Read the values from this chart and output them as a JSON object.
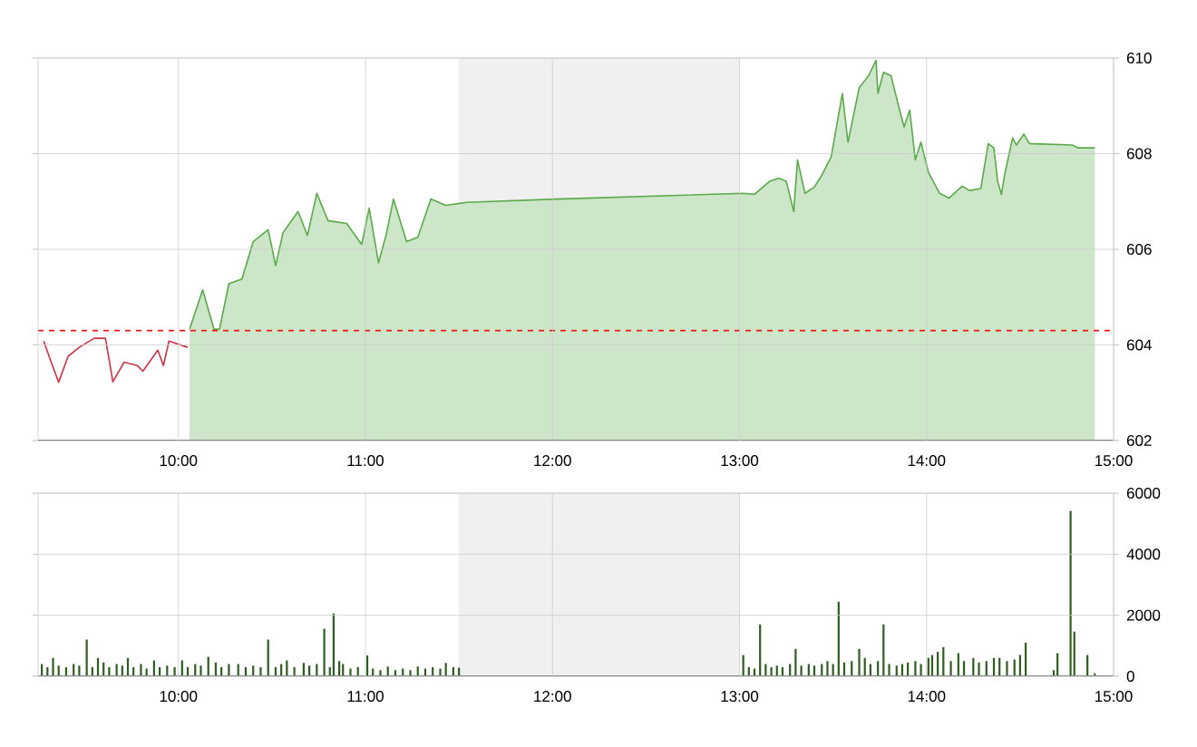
{
  "chart_data": [
    {
      "type": "line",
      "xlim": [
        9.25,
        15
      ],
      "ylim": [
        602,
        610
      ],
      "xticks": [
        {
          "value": 10,
          "label": "10:00"
        },
        {
          "value": 11,
          "label": "11:00"
        },
        {
          "value": 12,
          "label": "12:00"
        },
        {
          "value": 13,
          "label": "13:00"
        },
        {
          "value": 14,
          "label": "14:00"
        },
        {
          "value": 15,
          "label": "15:00"
        }
      ],
      "yticks": [
        602,
        604,
        606,
        608,
        610
      ],
      "grid": true,
      "bands": [
        {
          "axis": "x",
          "from": 11.5,
          "to": 13,
          "color": "#f0f0f0"
        }
      ],
      "ref_lines": [
        {
          "axis": "y",
          "value": 604.3,
          "color": "#ee1111",
          "line_style": "dashed"
        }
      ],
      "series": [
        {
          "type": "line",
          "color": "#cc3344",
          "x": [
            9.28,
            9.32,
            9.36,
            9.41,
            9.47,
            9.55,
            9.61,
            9.65,
            9.71,
            9.78,
            9.81,
            9.89,
            9.92,
            9.95,
            10.05
          ],
          "values": [
            604.08,
            603.64,
            603.22,
            603.76,
            603.95,
            604.14,
            604.14,
            603.23,
            603.64,
            603.57,
            603.45,
            603.89,
            603.57,
            604.08,
            603.95
          ]
        },
        {
          "type": "area",
          "color": "#5aaa4a",
          "x": [
            10.06,
            10.13,
            10.19,
            10.22,
            10.27,
            10.34,
            10.4,
            10.48,
            10.52,
            10.56,
            10.64,
            10.69,
            10.74,
            10.8,
            10.9,
            10.98,
            11.02,
            11.07,
            11.11,
            11.15,
            11.22,
            11.28,
            11.35,
            11.43,
            11.54,
            12.02,
            13.02,
            13.08,
            13.16,
            13.21,
            13.25,
            13.29,
            13.31,
            13.35,
            13.4,
            13.44,
            13.49,
            13.55,
            13.58,
            13.64,
            13.69,
            13.73,
            13.74,
            13.77,
            13.81,
            13.85,
            13.88,
            13.91,
            13.94,
            13.97,
            14.01,
            14.07,
            14.12,
            14.19,
            14.23,
            14.29,
            14.33,
            14.36,
            14.38,
            14.4,
            14.42,
            14.46,
            14.48,
            14.52,
            14.55,
            14.78,
            14.81,
            14.9
          ],
          "values": [
            604.33,
            605.15,
            604.33,
            604.33,
            605.28,
            605.38,
            606.16,
            606.41,
            605.66,
            606.35,
            606.79,
            606.29,
            607.17,
            606.6,
            606.54,
            606.1,
            606.86,
            605.72,
            606.29,
            607.05,
            606.16,
            606.25,
            607.05,
            606.92,
            606.98,
            607.05,
            607.17,
            607.15,
            607.42,
            607.49,
            607.42,
            606.79,
            607.87,
            607.17,
            607.3,
            607.55,
            607.93,
            609.26,
            608.24,
            609.38,
            609.63,
            609.95,
            609.26,
            609.7,
            609.63,
            609.0,
            608.56,
            608.91,
            607.87,
            608.24,
            607.61,
            607.17,
            607.07,
            607.32,
            607.23,
            607.27,
            608.21,
            608.12,
            607.42,
            607.15,
            607.61,
            608.33,
            608.18,
            608.41,
            608.21,
            608.18,
            608.12,
            608.12
          ]
        }
      ]
    },
    {
      "type": "bar",
      "xlim": [
        9.25,
        15
      ],
      "ylim": [
        0,
        6000
      ],
      "xticks": [
        {
          "value": 10,
          "label": "10:00"
        },
        {
          "value": 11,
          "label": "11:00"
        },
        {
          "value": 12,
          "label": "12:00"
        },
        {
          "value": 13,
          "label": "13:00"
        },
        {
          "value": 14,
          "label": "14:00"
        },
        {
          "value": 15,
          "label": "15:00"
        }
      ],
      "yticks": [
        0,
        2000,
        4000,
        6000
      ],
      "grid": true,
      "bands": [
        {
          "axis": "x",
          "from": 11.5,
          "to": 13,
          "color": "#f0f0f0"
        }
      ],
      "series": [
        {
          "color": "#2d5e1e",
          "x": [
            9.27,
            9.3,
            9.33,
            9.36,
            9.4,
            9.44,
            9.47,
            9.51,
            9.54,
            9.57,
            9.6,
            9.63,
            9.67,
            9.7,
            9.73,
            9.76,
            9.8,
            9.83,
            9.87,
            9.9,
            9.94,
            9.98,
            10.02,
            10.05,
            10.09,
            10.12,
            10.16,
            10.2,
            10.23,
            10.27,
            10.32,
            10.36,
            10.4,
            10.44,
            10.48,
            10.52,
            10.55,
            10.58,
            10.62,
            10.67,
            10.7,
            10.74,
            10.78,
            10.81,
            10.83,
            10.86,
            10.88,
            10.92,
            10.96,
            11.01,
            11.04,
            11.08,
            11.12,
            11.16,
            11.2,
            11.24,
            11.28,
            11.32,
            11.36,
            11.4,
            11.43,
            11.47,
            11.5,
            13.02,
            13.05,
            13.08,
            13.11,
            13.14,
            13.17,
            13.2,
            13.23,
            13.27,
            13.3,
            13.33,
            13.37,
            13.4,
            13.44,
            13.47,
            13.5,
            13.53,
            13.56,
            13.6,
            13.64,
            13.67,
            13.7,
            13.74,
            13.77,
            13.8,
            13.84,
            13.87,
            13.9,
            13.94,
            13.97,
            14.01,
            14.03,
            14.06,
            14.09,
            14.13,
            14.17,
            14.2,
            14.25,
            14.28,
            14.32,
            14.36,
            14.39,
            14.43,
            14.47,
            14.5,
            14.53,
            14.68,
            14.7,
            14.77,
            14.79,
            14.86,
            14.9
          ],
          "values": [
            400,
            300,
            600,
            350,
            300,
            400,
            350,
            1200,
            300,
            600,
            450,
            300,
            400,
            350,
            600,
            300,
            400,
            250,
            520,
            300,
            350,
            300,
            520,
            300,
            400,
            350,
            640,
            450,
            300,
            400,
            400,
            300,
            350,
            300,
            1200,
            300,
            400,
            520,
            300,
            440,
            350,
            400,
            1560,
            300,
            2060,
            500,
            400,
            250,
            300,
            680,
            250,
            200,
            320,
            200,
            250,
            200,
            320,
            250,
            300,
            250,
            440,
            300,
            280,
            700,
            300,
            250,
            1700,
            400,
            300,
            350,
            300,
            400,
            900,
            350,
            400,
            350,
            400,
            500,
            400,
            2440,
            450,
            500,
            900,
            600,
            400,
            500,
            1700,
            400,
            350,
            400,
            450,
            500,
            400,
            600,
            700,
            800,
            960,
            500,
            760,
            500,
            600,
            450,
            500,
            600,
            600,
            500,
            550,
            700,
            1100,
            200,
            760,
            5420,
            1460,
            700,
            100
          ]
        }
      ]
    }
  ]
}
